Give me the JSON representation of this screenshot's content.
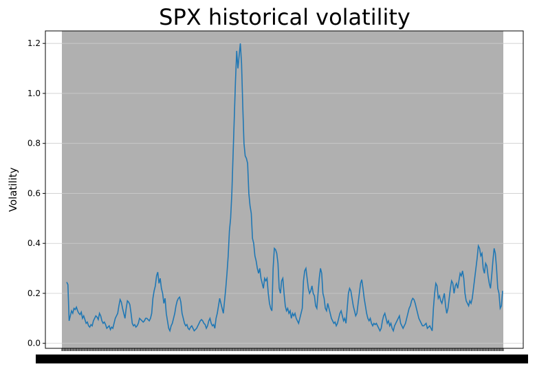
{
  "chart_data": {
    "type": "line",
    "title": "SPX historical volatility",
    "xlabel": "",
    "ylabel": "Volatility",
    "ylim": [
      -0.02,
      1.25
    ],
    "yticks": [
      "0.0",
      "0.2",
      "0.4",
      "0.6",
      "0.8",
      "1.0",
      "1.2"
    ],
    "grid": "horizontal",
    "colors": {
      "line": "#1f77b4",
      "background": "#b0b0b0",
      "grid": "#cccccc"
    },
    "series": [
      {
        "values": [
          0.245,
          0.235,
          0.09,
          0.11,
          0.13,
          0.12,
          0.14,
          0.135,
          0.145,
          0.13,
          0.12,
          0.115,
          0.125,
          0.1,
          0.11,
          0.095,
          0.08,
          0.085,
          0.07,
          0.065,
          0.075,
          0.07,
          0.09,
          0.1,
          0.11,
          0.105,
          0.095,
          0.12,
          0.11,
          0.09,
          0.08,
          0.085,
          0.075,
          0.06,
          0.065,
          0.07,
          0.055,
          0.065,
          0.06,
          0.08,
          0.1,
          0.11,
          0.12,
          0.15,
          0.175,
          0.165,
          0.14,
          0.12,
          0.1,
          0.14,
          0.17,
          0.165,
          0.155,
          0.12,
          0.08,
          0.07,
          0.075,
          0.065,
          0.07,
          0.08,
          0.1,
          0.095,
          0.09,
          0.085,
          0.09,
          0.1,
          0.1,
          0.095,
          0.09,
          0.1,
          0.12,
          0.18,
          0.21,
          0.23,
          0.27,
          0.285,
          0.24,
          0.26,
          0.22,
          0.2,
          0.16,
          0.18,
          0.12,
          0.09,
          0.06,
          0.05,
          0.07,
          0.08,
          0.1,
          0.12,
          0.15,
          0.17,
          0.18,
          0.185,
          0.165,
          0.12,
          0.1,
          0.08,
          0.07,
          0.075,
          0.06,
          0.055,
          0.065,
          0.07,
          0.06,
          0.05,
          0.055,
          0.06,
          0.07,
          0.08,
          0.09,
          0.095,
          0.09,
          0.08,
          0.075,
          0.06,
          0.07,
          0.09,
          0.1,
          0.08,
          0.07,
          0.075,
          0.06,
          0.1,
          0.12,
          0.15,
          0.18,
          0.16,
          0.14,
          0.12,
          0.17,
          0.22,
          0.28,
          0.35,
          0.45,
          0.5,
          0.6,
          0.75,
          0.9,
          1.05,
          1.17,
          1.1,
          1.15,
          1.2,
          1.12,
          0.95,
          0.8,
          0.75,
          0.74,
          0.72,
          0.6,
          0.55,
          0.52,
          0.42,
          0.4,
          0.35,
          0.33,
          0.3,
          0.28,
          0.3,
          0.26,
          0.24,
          0.22,
          0.26,
          0.25,
          0.26,
          0.2,
          0.16,
          0.14,
          0.13,
          0.3,
          0.38,
          0.375,
          0.36,
          0.32,
          0.22,
          0.2,
          0.25,
          0.26,
          0.2,
          0.15,
          0.13,
          0.14,
          0.12,
          0.13,
          0.1,
          0.12,
          0.11,
          0.12,
          0.1,
          0.09,
          0.08,
          0.1,
          0.12,
          0.14,
          0.25,
          0.29,
          0.3,
          0.26,
          0.22,
          0.2,
          0.21,
          0.23,
          0.2,
          0.19,
          0.15,
          0.14,
          0.2,
          0.26,
          0.3,
          0.28,
          0.2,
          0.18,
          0.14,
          0.13,
          0.16,
          0.14,
          0.12,
          0.1,
          0.09,
          0.08,
          0.085,
          0.07,
          0.08,
          0.1,
          0.12,
          0.13,
          0.11,
          0.09,
          0.1,
          0.08,
          0.14,
          0.2,
          0.22,
          0.21,
          0.18,
          0.15,
          0.13,
          0.11,
          0.12,
          0.16,
          0.2,
          0.24,
          0.255,
          0.22,
          0.18,
          0.15,
          0.12,
          0.1,
          0.09,
          0.1,
          0.08,
          0.07,
          0.08,
          0.075,
          0.08,
          0.07,
          0.06,
          0.05,
          0.06,
          0.09,
          0.11,
          0.12,
          0.1,
          0.08,
          0.09,
          0.07,
          0.08,
          0.06,
          0.05,
          0.07,
          0.08,
          0.09,
          0.1,
          0.11,
          0.08,
          0.07,
          0.06,
          0.07,
          0.08,
          0.1,
          0.12,
          0.14,
          0.15,
          0.17,
          0.18,
          0.175,
          0.16,
          0.14,
          0.12,
          0.1,
          0.09,
          0.08,
          0.07,
          0.07,
          0.075,
          0.08,
          0.06,
          0.065,
          0.07,
          0.06,
          0.05,
          0.14,
          0.2,
          0.24,
          0.23,
          0.18,
          0.19,
          0.17,
          0.16,
          0.18,
          0.2,
          0.15,
          0.12,
          0.14,
          0.18,
          0.22,
          0.25,
          0.24,
          0.2,
          0.23,
          0.24,
          0.22,
          0.25,
          0.28,
          0.27,
          0.29,
          0.26,
          0.2,
          0.17,
          0.16,
          0.15,
          0.17,
          0.16,
          0.18,
          0.22,
          0.26,
          0.3,
          0.34,
          0.39,
          0.38,
          0.35,
          0.36,
          0.3,
          0.28,
          0.32,
          0.31,
          0.27,
          0.24,
          0.22,
          0.27,
          0.33,
          0.38,
          0.36,
          0.3,
          0.22,
          0.2,
          0.14,
          0.15,
          0.21
        ]
      }
    ]
  }
}
